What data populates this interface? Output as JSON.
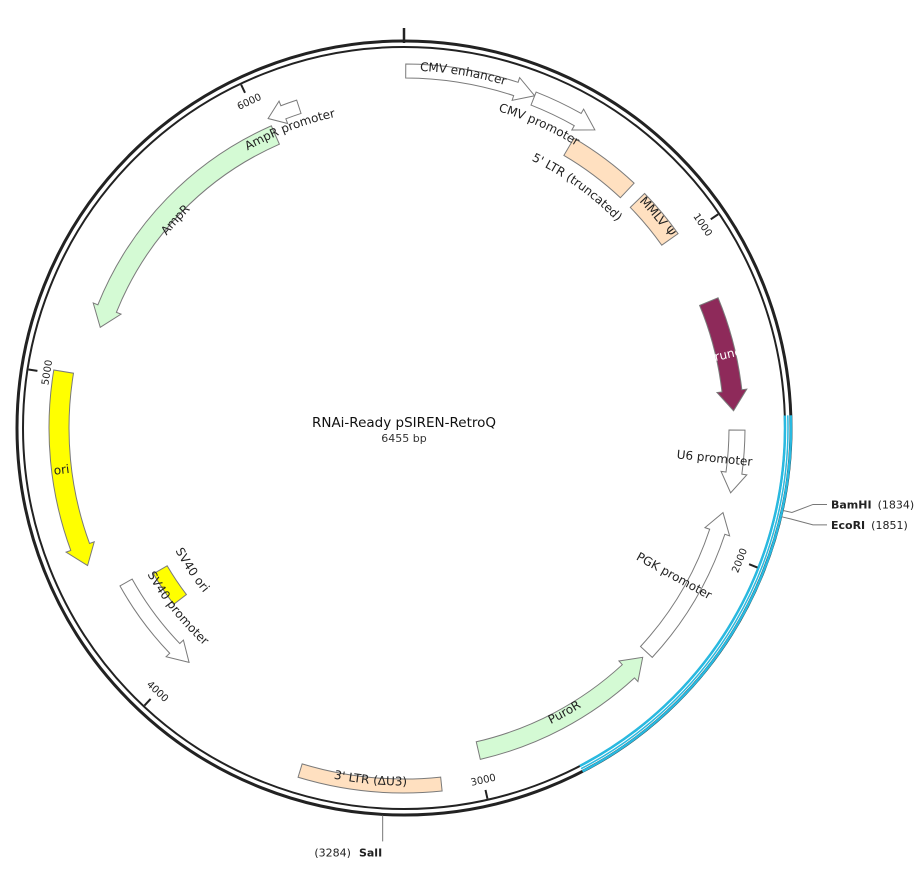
{
  "map": {
    "name": "RNAi-Ready pSIREN-RetroQ",
    "size_label": "6455 bp",
    "length": 6455,
    "backbone_color": "#222222",
    "highlight_color": "#29b9e0",
    "highlight_range": [
      1580,
      2735
    ]
  },
  "ticks": [
    {
      "label": "1000",
      "position": 1000
    },
    {
      "label": "2000",
      "position": 2000
    },
    {
      "label": "3000",
      "position": 3000
    },
    {
      "label": "4000",
      "position": 4000
    },
    {
      "label": "5000",
      "position": 5000
    },
    {
      "label": "6000",
      "position": 6000
    }
  ],
  "features": [
    {
      "id": "cmv-enhancer",
      "label": "CMV enhancer",
      "kind": "arrow",
      "start": 5,
      "end": 385,
      "strand": 1,
      "color": "#ffffff"
    },
    {
      "id": "cmv-promoter",
      "label": "CMV promoter",
      "kind": "arrow",
      "start": 385,
      "end": 585,
      "strand": 1,
      "color": "#ffffff"
    },
    {
      "id": "5-ltr",
      "label": "5' LTR (truncated)",
      "kind": "box",
      "start": 545,
      "end": 775,
      "strand": 0,
      "color": "#ffe0c0"
    },
    {
      "id": "mmlv-psi",
      "label": "MMLV Ψ",
      "kind": "box",
      "start": 820,
      "end": 980,
      "strand": 0,
      "color": "#ffe0c0"
    },
    {
      "id": "gag",
      "label": "gag (truncated)",
      "kind": "arrow",
      "start": 1210,
      "end": 1560,
      "strand": 1,
      "color": "#8e2a5a"
    },
    {
      "id": "u6-promoter",
      "label": "U6 promoter",
      "kind": "arrow",
      "start": 1620,
      "end": 1815,
      "strand": 1,
      "color": "#ffffff"
    },
    {
      "id": "pgk-promoter",
      "label": "PGK promoter",
      "kind": "arrow",
      "start": 1880,
      "end": 2380,
      "strand": -1,
      "color": "#ffffff"
    },
    {
      "id": "puror",
      "label": "PuroR",
      "kind": "arrow",
      "start": 2400,
      "end": 2995,
      "strand": -1,
      "color": "#d4fad4"
    },
    {
      "id": "3-ltr",
      "label": "3' LTR (ΔU3)",
      "kind": "box",
      "start": 3120,
      "end": 3530,
      "strand": 0,
      "color": "#ffe0c0"
    },
    {
      "id": "sv40-promoter",
      "label": "SV40 promoter",
      "kind": "arrow",
      "start": 3990,
      "end": 4320,
      "strand": -1,
      "color": "#ffffff"
    },
    {
      "id": "sv40-ori",
      "label": "SV40 ori",
      "kind": "box",
      "start": 4170,
      "end": 4300,
      "strand": 0,
      "color": "#ffff00"
    },
    {
      "id": "ori",
      "label": "ori",
      "kind": "arrow",
      "start": 4420,
      "end": 5010,
      "strand": -1,
      "color": "#ffff00"
    },
    {
      "id": "ampr",
      "label": "AmpR",
      "kind": "arrow",
      "start": 5170,
      "end": 6030,
      "strand": -1,
      "color": "#d4fad4"
    },
    {
      "id": "ampr-promoter",
      "label": "AmpR promoter",
      "kind": "arrow",
      "start": 6030,
      "end": 6130,
      "strand": -1,
      "color": "#ffffff"
    }
  ],
  "sites": [
    {
      "id": "bamhi",
      "name": "BamHI",
      "position_label": "(1834)",
      "position": 1834
    },
    {
      "id": "ecori",
      "name": "EcoRI",
      "position_label": "(1851)",
      "position": 1851
    },
    {
      "id": "sali",
      "name": "SalI",
      "position_label": "(3284)",
      "position": 3284
    }
  ]
}
